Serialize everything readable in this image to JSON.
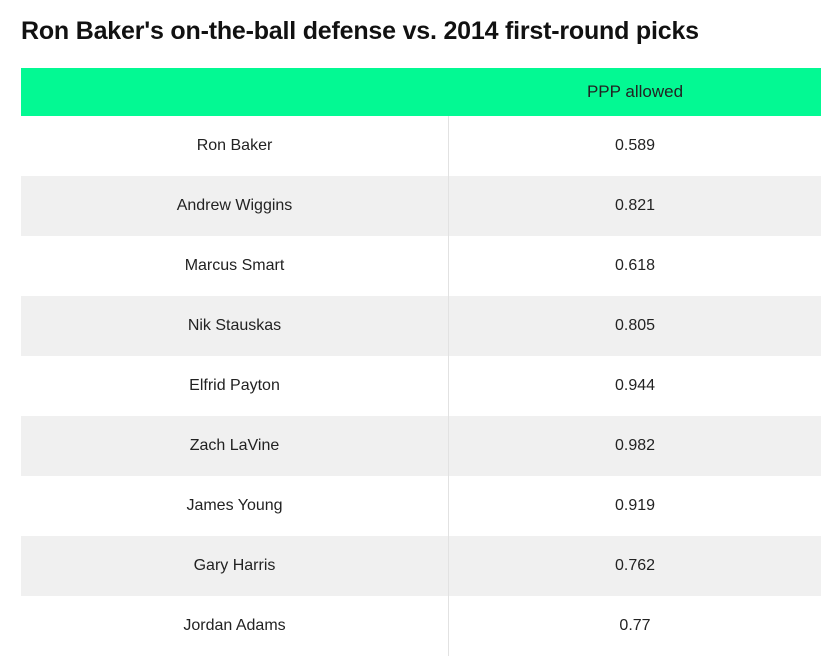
{
  "chart_data": {
    "type": "table",
    "title": "Ron Baker's on-the-ball defense vs. 2014 first-round picks",
    "columns": [
      "",
      "PPP allowed"
    ],
    "rows": [
      {
        "player": "Ron Baker",
        "ppp": "0.589"
      },
      {
        "player": "Andrew Wiggins",
        "ppp": "0.821"
      },
      {
        "player": "Marcus Smart",
        "ppp": "0.618"
      },
      {
        "player": "Nik Stauskas",
        "ppp": "0.805"
      },
      {
        "player": "Elfrid Payton",
        "ppp": "0.944"
      },
      {
        "player": "Zach LaVine",
        "ppp": "0.982"
      },
      {
        "player": "James Young",
        "ppp": "0.919"
      },
      {
        "player": "Gary Harris",
        "ppp": "0.762"
      },
      {
        "player": "Jordan Adams",
        "ppp": "0.77"
      }
    ]
  },
  "colors": {
    "header_bg": "#03f993",
    "alt_row_bg": "#f0f0f0",
    "text": "#222222"
  }
}
